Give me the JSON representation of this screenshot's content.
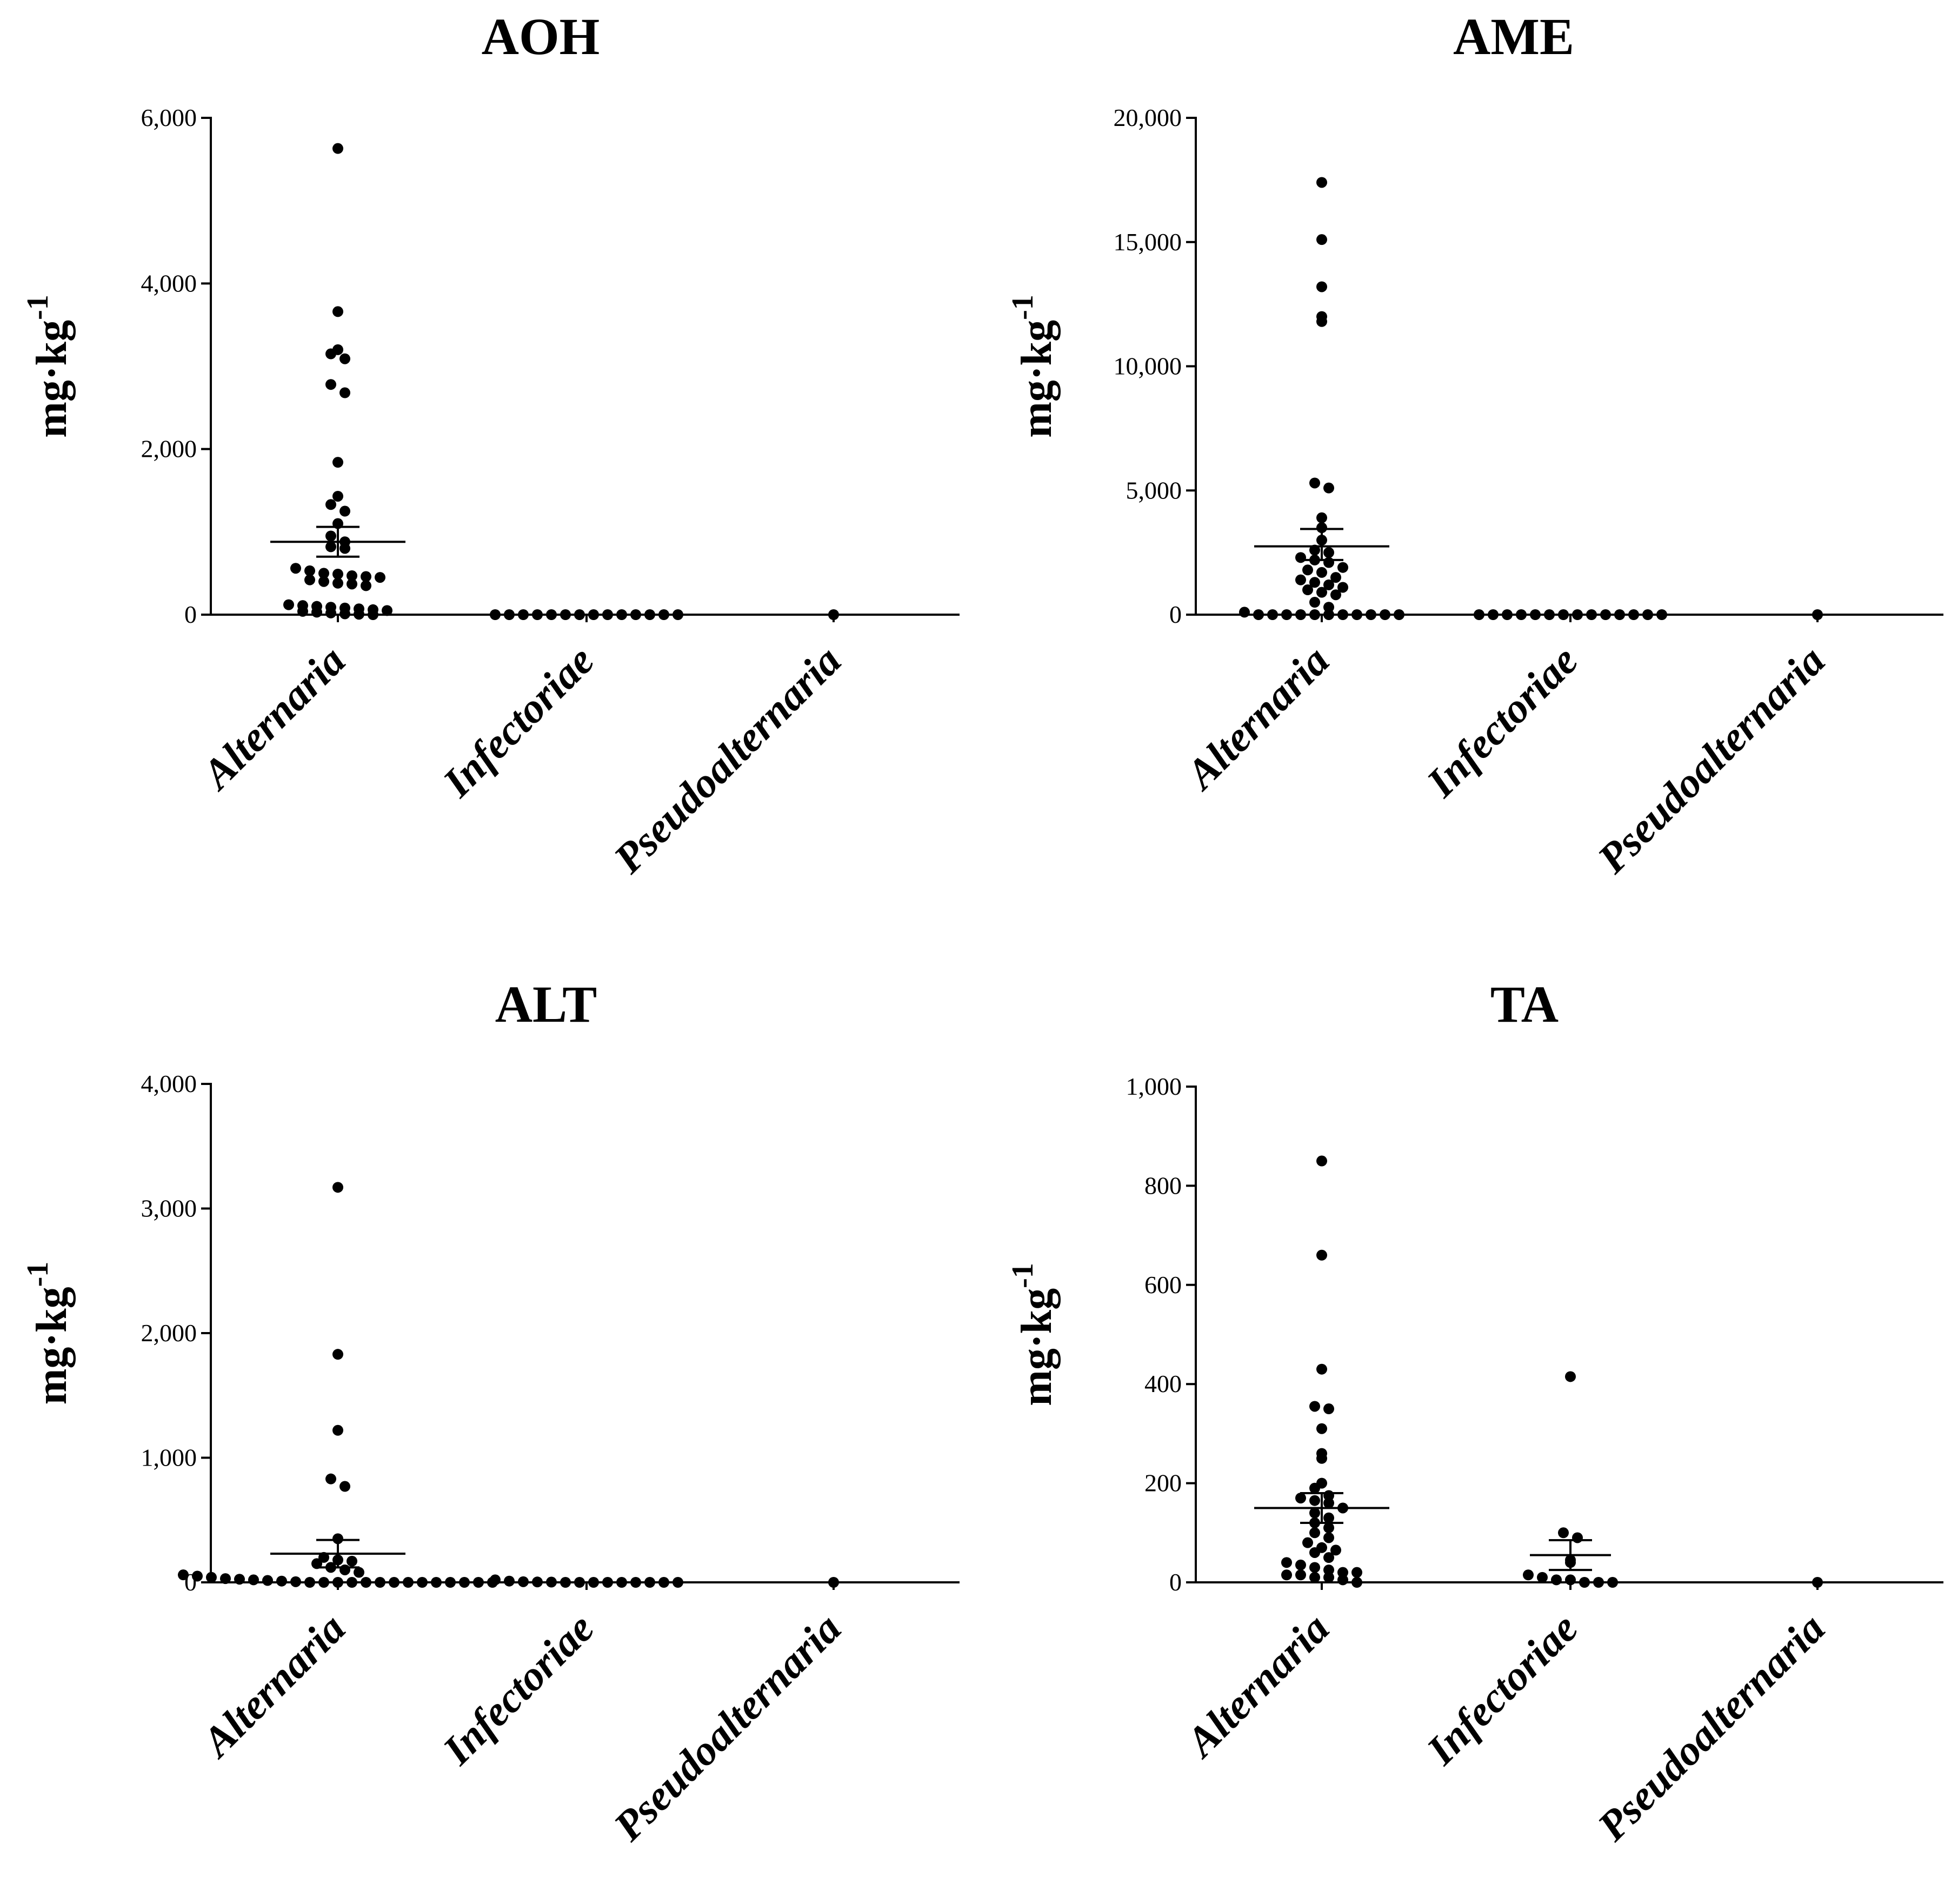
{
  "chart_data": [
    {
      "type": "scatter",
      "title": "AOH",
      "ylabel": "mg·kg",
      "ylabel_sup": "-1",
      "ylim": [
        0,
        6000
      ],
      "yticks": [
        "0",
        "2,000",
        "4,000",
        "6,000"
      ],
      "ytick_values": [
        0,
        2000,
        4000,
        6000
      ],
      "categories": [
        "Alternaria",
        "Infectoriae",
        "Pseudoalternaria"
      ],
      "groups": [
        {
          "name": "Alternaria",
          "mean": 880,
          "sem_low": 700,
          "sem_high": 1060,
          "values": [
            5630,
            3660,
            3200,
            3150,
            3090,
            2780,
            2680,
            1840,
            1430,
            1330,
            1250,
            1100,
            950,
            880,
            820,
            800,
            560,
            530,
            500,
            490,
            470,
            460,
            450,
            420,
            400,
            380,
            370,
            350,
            120,
            110,
            100,
            90,
            80,
            70,
            60,
            50,
            40,
            30,
            20,
            10,
            5,
            0
          ]
        },
        {
          "name": "Infectoriae",
          "mean": 0,
          "sem_low": 0,
          "sem_high": 0,
          "values": [
            0,
            0,
            0,
            0,
            0,
            0,
            0,
            0,
            0,
            0,
            0,
            0,
            0,
            0
          ]
        },
        {
          "name": "Pseudoalternaria",
          "mean": 0,
          "sem_low": 0,
          "sem_high": 0,
          "values": [
            0
          ]
        }
      ]
    },
    {
      "type": "scatter",
      "title": "AME",
      "ylabel": "mg·kg",
      "ylabel_sup": "-1",
      "ylim": [
        0,
        20000
      ],
      "yticks": [
        "0",
        "5,000",
        "10,000",
        "15,000",
        "20,000"
      ],
      "ytick_values": [
        0,
        5000,
        10000,
        15000,
        20000
      ],
      "categories": [
        "Alternaria",
        "Infectoriae",
        "Pseudoalternaria"
      ],
      "groups": [
        {
          "name": "Alternaria",
          "mean": 2750,
          "sem_low": 2200,
          "sem_high": 3450,
          "values": [
            17400,
            15100,
            13200,
            12000,
            11800,
            5300,
            5100,
            3900,
            3500,
            3000,
            2600,
            2500,
            2300,
            2200,
            2100,
            1900,
            1800,
            1700,
            1500,
            1400,
            1300,
            1200,
            1100,
            1000,
            900,
            800,
            500,
            300,
            100,
            0,
            0,
            0,
            0,
            0,
            0,
            0,
            0,
            0,
            0,
            0
          ]
        },
        {
          "name": "Infectoriae",
          "mean": 0,
          "sem_low": 0,
          "sem_high": 0,
          "values": [
            0,
            0,
            0,
            0,
            0,
            0,
            0,
            0,
            0,
            0,
            0,
            0,
            0,
            0
          ]
        },
        {
          "name": "Pseudoalternaria",
          "mean": 0,
          "sem_low": 0,
          "sem_high": 0,
          "values": [
            0
          ]
        }
      ]
    },
    {
      "type": "scatter",
      "title": "ALT",
      "ylabel": "mg·kg",
      "ylabel_sup": "-1",
      "ylim": [
        0,
        4000
      ],
      "yticks": [
        "0",
        "1,000",
        "2,000",
        "3,000",
        "4,000"
      ],
      "ytick_values": [
        0,
        1000,
        2000,
        3000,
        4000
      ],
      "categories": [
        "Alternaria",
        "Infectoriae",
        "Pseudoalternaria"
      ],
      "groups": [
        {
          "name": "Alternaria",
          "mean": 230,
          "sem_low": 120,
          "sem_high": 340,
          "values": [
            3170,
            1830,
            1220,
            830,
            770,
            350,
            200,
            180,
            170,
            150,
            120,
            100,
            80,
            60,
            50,
            40,
            30,
            25,
            20,
            15,
            10,
            5,
            0,
            0,
            0,
            0,
            0,
            0,
            0,
            0,
            0,
            0,
            0,
            0,
            0,
            0
          ]
        },
        {
          "name": "Infectoriae",
          "mean": 5,
          "sem_low": 2,
          "sem_high": 8,
          "values": [
            20,
            10,
            5,
            3,
            2,
            0,
            0,
            0,
            0,
            0,
            0,
            0,
            0,
            0
          ]
        },
        {
          "name": "Pseudoalternaria",
          "mean": 0,
          "sem_low": 0,
          "sem_high": 0,
          "values": [
            0
          ]
        }
      ]
    },
    {
      "type": "scatter",
      "title": "TA",
      "ylabel": "mg·kg",
      "ylabel_sup": "-1",
      "ylim": [
        0,
        1000
      ],
      "yticks": [
        "0",
        "200",
        "400",
        "600",
        "800",
        "1,000"
      ],
      "ytick_values": [
        0,
        200,
        400,
        600,
        800,
        1000
      ],
      "categories": [
        "Alternaria",
        "Infectoriae",
        "Pseudoalternaria"
      ],
      "groups": [
        {
          "name": "Alternaria",
          "mean": 150,
          "sem_low": 120,
          "sem_high": 180,
          "values": [
            850,
            660,
            430,
            355,
            350,
            310,
            260,
            250,
            200,
            190,
            175,
            170,
            165,
            160,
            150,
            140,
            130,
            120,
            110,
            100,
            90,
            80,
            70,
            65,
            60,
            50,
            40,
            35,
            30,
            25,
            20,
            20,
            15,
            15,
            10,
            10,
            5,
            0
          ]
        },
        {
          "name": "Infectoriae",
          "mean": 55,
          "sem_low": 25,
          "sem_high": 85,
          "values": [
            415,
            100,
            90,
            45,
            40,
            15,
            10,
            5,
            5,
            0,
            0,
            0
          ]
        },
        {
          "name": "Pseudoalternaria",
          "mean": 0,
          "sem_low": 0,
          "sem_high": 0,
          "values": [
            0
          ]
        }
      ]
    }
  ]
}
